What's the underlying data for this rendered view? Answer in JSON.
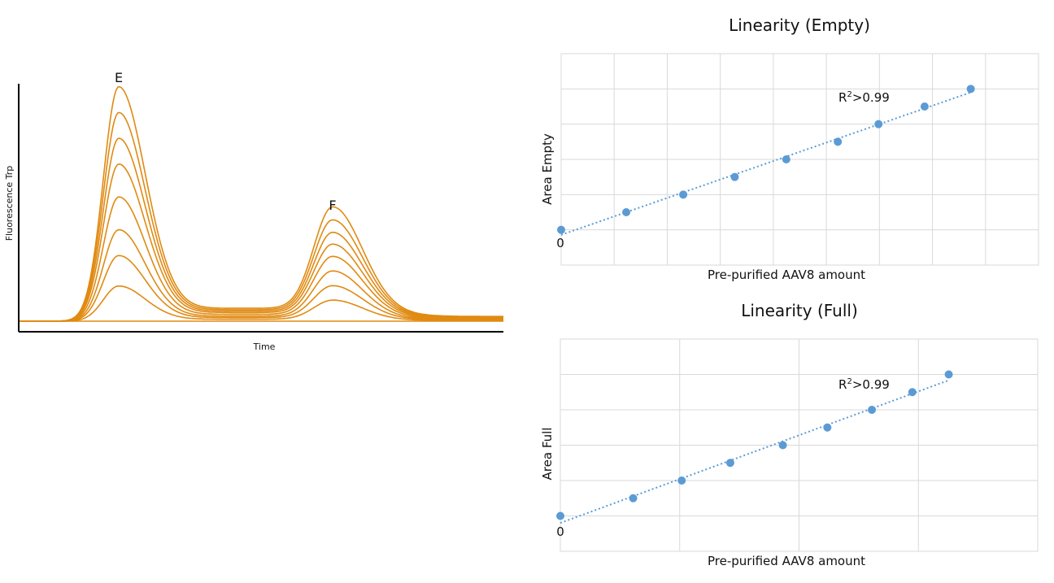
{
  "chart_data": [
    {
      "type": "line",
      "xlabel": "Time",
      "ylabel": "Fluorescence Trp",
      "annotations": [
        "E",
        "F"
      ],
      "peak_E_amplitudes": [
        0.0,
        0.15,
        0.28,
        0.39,
        0.53,
        0.67,
        0.78,
        0.89,
        1.0
      ],
      "peak_F_amplitudes": [
        0.0,
        0.066,
        0.11,
        0.156,
        0.2,
        0.236,
        0.272,
        0.31,
        0.35
      ],
      "grid": false
    },
    {
      "type": "scatter",
      "title": "Linearity (Empty)",
      "xlabel": "Pre-purified AAV8 amount",
      "ylabel": "Area Empty",
      "origin_label": "0",
      "annotation": "R²>0.99",
      "x": [
        0,
        1.2,
        2.25,
        3.2,
        4.15,
        5.1,
        5.85,
        6.7,
        7.55
      ],
      "y": [
        0,
        0.5,
        1.0,
        1.5,
        2.0,
        2.5,
        3.0,
        3.5,
        4.0
      ],
      "trendline": "linear",
      "xlim": [
        0,
        8.8
      ],
      "ylim": [
        -1,
        5
      ],
      "grid": true
    },
    {
      "type": "scatter",
      "title": "Linearity (Full)",
      "xlabel": "Pre-purified AAV8 amount",
      "ylabel": "Area Full",
      "origin_label": "0",
      "annotation": "R²>0.99",
      "x": [
        0,
        0.9,
        1.5,
        2.1,
        2.75,
        3.3,
        3.85,
        4.35,
        4.8
      ],
      "y": [
        0,
        0.5,
        1.0,
        1.5,
        2.0,
        2.5,
        3.0,
        3.5,
        4.0
      ],
      "trendline": "linear",
      "xlim": [
        0,
        5.9
      ],
      "ylim": [
        -1,
        5
      ],
      "grid": true
    }
  ]
}
